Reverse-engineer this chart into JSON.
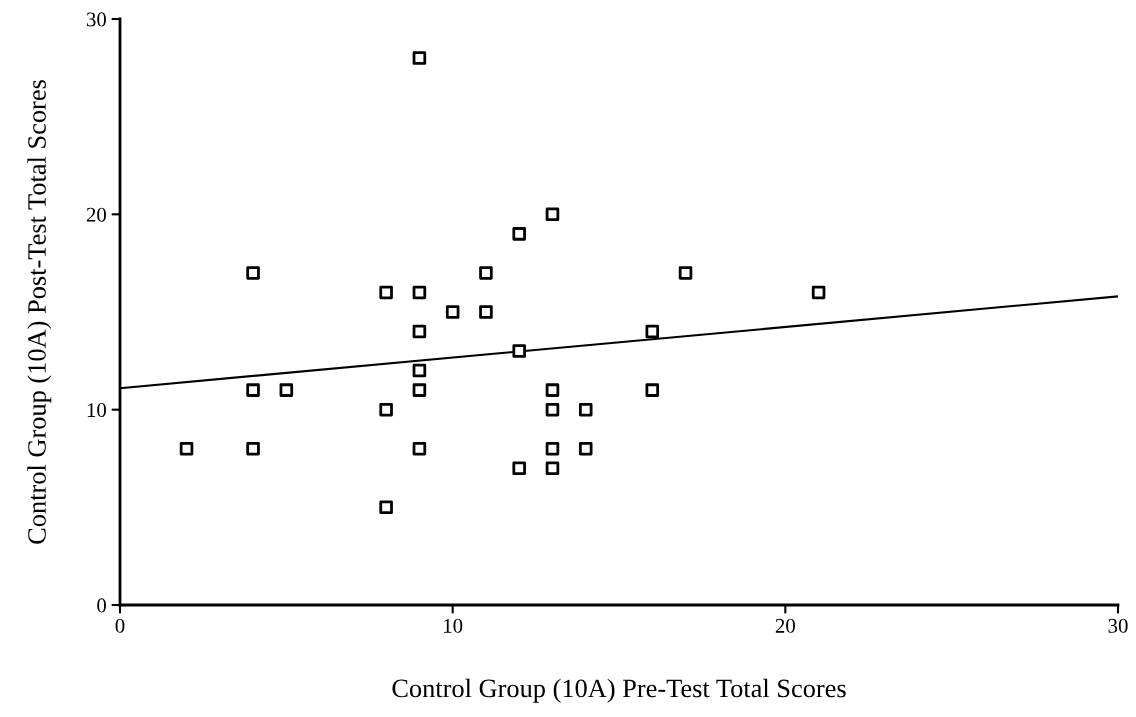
{
  "chart_data": {
    "type": "scatter",
    "xlabel": "Control Group (10A) Pre-Test Total Scores",
    "ylabel": "Control Group (10A) Post-Test Total Scores",
    "xlim": [
      0,
      30
    ],
    "ylim": [
      0,
      30
    ],
    "xticks": [
      0,
      10,
      20,
      30
    ],
    "yticks": [
      0,
      10,
      20,
      30
    ],
    "grid": false,
    "series": [
      {
        "color": "#000000",
        "marker": "square",
        "x": [
          2,
          4,
          4,
          4,
          5,
          8,
          8,
          8,
          9,
          9,
          9,
          9,
          9,
          9,
          10,
          11,
          11,
          12,
          12,
          12,
          13,
          13,
          13,
          13,
          13,
          14,
          14,
          16,
          16,
          17,
          21
        ],
        "values": [
          8,
          17,
          11,
          8,
          11,
          16,
          10,
          5,
          28,
          16,
          14,
          12,
          11,
          8,
          15,
          15,
          17,
          19,
          13,
          7,
          20,
          11,
          10,
          8,
          7,
          10,
          8,
          14,
          11,
          17,
          16
        ]
      },
      {
        "type": "line",
        "color": "#000000",
        "marker": "none",
        "line_style": "solid",
        "x": [
          0,
          30
        ],
        "values": [
          11.1,
          15.8
        ]
      }
    ]
  }
}
